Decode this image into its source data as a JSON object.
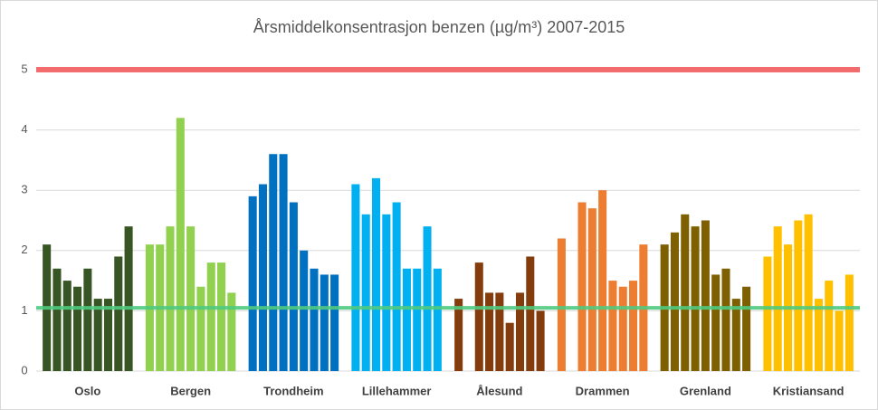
{
  "chart_data": {
    "type": "bar",
    "title": "Årsmiddelkonsentrasjon  benzen (µg/m³) 2007-2015",
    "series": [
      {
        "name": "Oslo",
        "color": "#375623",
        "values": [
          2.1,
          1.7,
          1.5,
          1.4,
          1.7,
          1.2,
          1.2,
          1.9,
          2.4
        ]
      },
      {
        "name": "Bergen",
        "color": "#92d050",
        "values": [
          2.1,
          2.1,
          2.4,
          4.2,
          2.4,
          1.4,
          1.8,
          1.8,
          1.3
        ]
      },
      {
        "name": "Trondheim",
        "color": "#0070c0",
        "values": [
          2.9,
          3.1,
          3.6,
          3.6,
          2.8,
          2.0,
          1.7,
          1.6,
          1.6
        ]
      },
      {
        "name": "Lillehammer",
        "color": "#00b0f0",
        "values": [
          3.1,
          2.6,
          3.2,
          2.6,
          2.8,
          1.7,
          1.7,
          2.4,
          1.7
        ]
      },
      {
        "name": "Ålesund",
        "color": "#843c0c",
        "values": [
          1.2,
          null,
          1.8,
          1.3,
          1.3,
          0.8,
          1.3,
          1.9,
          1.0
        ]
      },
      {
        "name": "Drammen",
        "color": "#ed7d31",
        "values": [
          2.2,
          null,
          2.8,
          2.7,
          3.0,
          1.5,
          1.4,
          1.5,
          2.1
        ]
      },
      {
        "name": "Grenland",
        "color": "#7f6000",
        "values": [
          2.1,
          2.3,
          2.6,
          2.4,
          2.5,
          1.6,
          1.7,
          1.2,
          1.4
        ]
      },
      {
        "name": "Kristiansand",
        "color": "#ffc000",
        "values": [
          1.9,
          2.4,
          2.1,
          2.5,
          2.6,
          1.2,
          1.5,
          1.0,
          1.6
        ]
      }
    ],
    "reference_lines": [
      {
        "value": 5,
        "color": "#f25c5e"
      },
      {
        "value": 1.05,
        "color": "#4fca7e"
      }
    ],
    "ylim": [
      0,
      5
    ],
    "yticks": [
      0,
      1,
      2,
      3,
      4,
      5
    ],
    "grid": true
  }
}
